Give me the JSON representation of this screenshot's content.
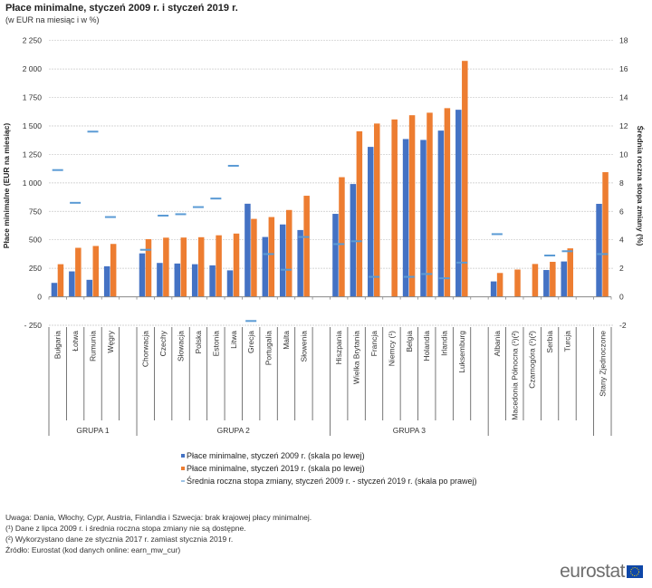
{
  "chart_data": {
    "type": "bar",
    "title": "Płace minimalne,  styczeń 2009 r. i styczeń 2019 r.",
    "subtitle": "(w EUR na miesiąc i w %)",
    "ylabel": "Płace minimalne (EUR na miesiąc)",
    "y2label": "Średnia roczna stopa zmiany (%)",
    "ylim": [
      -250,
      2250
    ],
    "y2lim": [
      -2,
      18
    ],
    "yticks": [
      "- 250",
      "0",
      "250",
      "500",
      "750",
      "1 000",
      "1 250",
      "1 500",
      "1 750",
      "2 000",
      "2 250"
    ],
    "y2ticks": [
      "-2",
      "0",
      "2",
      "4",
      "6",
      "8",
      "10",
      "12",
      "14",
      "16",
      "18"
    ],
    "grid": true,
    "legend_position": "bottom",
    "groups": [
      {
        "label": "GRUPA 1",
        "categories": [
          "Bułgaria",
          "Łotwa",
          "Rumunia",
          "Węgry"
        ]
      },
      {
        "label": "GRUPA 2",
        "categories": [
          "Chorwacja",
          "Czechy",
          "Słowacja",
          "Polska",
          "Estonia",
          "Litwa",
          "Grecja",
          "Portugalia",
          "Malta",
          "Słowenia"
        ]
      },
      {
        "label": "GRUPA 3",
        "categories": [
          "Hiszpania",
          "Wielka Brytania",
          "Francja",
          "Niemcy (¹)",
          "Belgia",
          "Holandia",
          "Irlandia",
          "Luksemburg"
        ]
      },
      {
        "label": "",
        "categories": [
          "Albania",
          "Macedonia Północna (¹)(²)",
          "Czarnogóra (¹)(²)",
          "Serbia",
          "Turcja"
        ]
      },
      {
        "label": "",
        "categories": [
          "Stany Zjednoczone"
        ]
      }
    ],
    "series": [
      {
        "name": "Płace minimalne, styczeń 2009 r. (skala po lewej)",
        "color": "#4472c4",
        "axis": "left",
        "values": [
          122,
          223,
          149,
          268,
          381,
          297,
          292,
          286,
          276,
          232,
          817,
          525,
          635,
          586,
          728,
          990,
          1316,
          null,
          1385,
          1377,
          1459,
          1642,
          135,
          null,
          null,
          235,
          310,
          816
        ]
      },
      {
        "name": "Płace minimalne, styczeń 2019 r. (skala po lewej)",
        "color": "#ed7d31",
        "axis": "left",
        "values": [
          286,
          430,
          446,
          464,
          506,
          519,
          520,
          523,
          540,
          555,
          684,
          700,
          762,
          887,
          1050,
          1453,
          1521,
          1557,
          1594,
          1616,
          1656,
          2071,
          209,
          239,
          288,
          307,
          425,
          1094
        ]
      },
      {
        "name": "Średnia roczna stopa zmiany, styczeń 2009 r. - styczeń 2019 r. (skala po prawej)",
        "color": "#5b9bd5",
        "axis": "right",
        "values": [
          8.9,
          6.6,
          11.6,
          5.6,
          3.3,
          5.7,
          5.8,
          6.3,
          6.9,
          9.2,
          -1.7,
          3.0,
          1.9,
          4.2,
          3.7,
          3.9,
          1.4,
          null,
          1.4,
          1.6,
          1.3,
          2.4,
          4.4,
          null,
          null,
          2.9,
          3.2,
          3.0
        ]
      }
    ]
  },
  "notes": [
    "Uwaga: Dania, Włochy, Cypr, Austria, Finlandia i Szwecja: brak krajowej płacy minimalnej.",
    "(¹) Dane z lipca 2009 r. i średnia roczna stopa zmiany nie są dostępne.",
    "(²) Wykorzystano dane ze stycznia 2017 r. zamiast stycznia 2019 r.",
    "Źródło:  Eurostat (kod danych online: earn_mw_cur)"
  ],
  "logo": "eurostat"
}
